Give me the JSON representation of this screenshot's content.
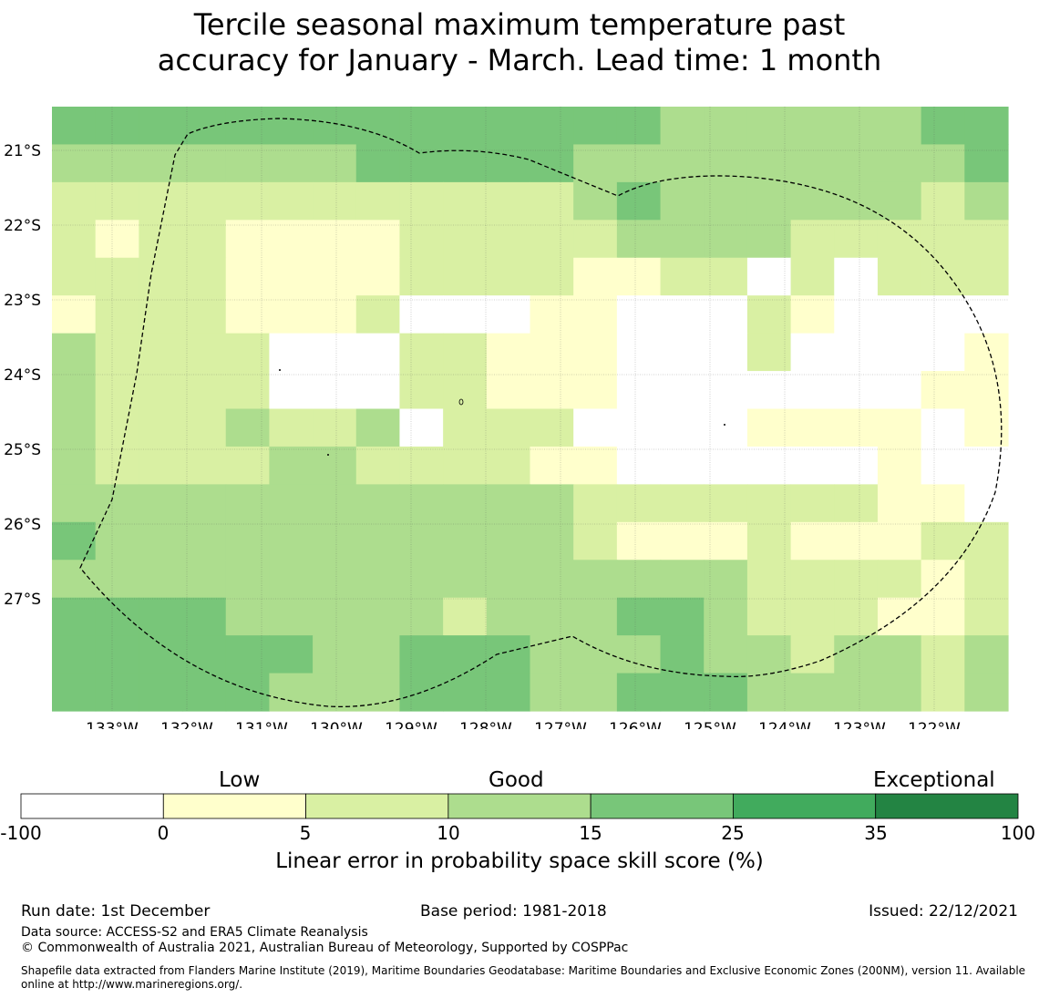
{
  "title_line1": "Tercile seasonal maximum temperature past",
  "title_line2": "accuracy for January - March. Lead time: 1 month",
  "map": {
    "lon_labels": [
      "133°W",
      "132°W",
      "131°W",
      "130°W",
      "129°W",
      "128°W",
      "127°W",
      "126°W",
      "125°W",
      "124°W",
      "123°W",
      "122°W"
    ],
    "lat_labels": [
      "21°S",
      "22°S",
      "23°S",
      "24°S",
      "25°S",
      "26°S",
      "27°S"
    ],
    "grid_rows": [
      "3333333333333322222233",
      "2222222333332222222223",
      "1111111111112322222212",
      "1011000011111222211111",
      "1111000011110011-1-111",
      "01110001---00---10----",
      "21111---11000---1----0",
      "21111---11000-------00",
      "21112112-111----0000-0",
      "2111122111100------0--",
      "222222222222111111100-",
      "3222222222221000100011",
      "2222222222222222111101",
      "3333222221222332111001",
      "3333332233322232212212",
      "3333322233322333222212"
    ]
  },
  "colorbar": {
    "categories": [
      "Low",
      "Good",
      "Exceptional"
    ],
    "ticks": [
      "-100",
      "0",
      "5",
      "10",
      "15",
      "25",
      "35",
      "100"
    ],
    "colors": [
      "#ffffff",
      "#ffffcc",
      "#d9f0a3",
      "#addd8e",
      "#78c679",
      "#41ab5d",
      "#238443"
    ],
    "label": "Linear error in probability space skill score (%)"
  },
  "footer": {
    "run_date": "Run date: 1st December",
    "base_period": "Base period: 1981-2018",
    "issued": "Issued: 22/12/2021",
    "data_source": "Data source: ACCESS-S2 and ERA5 Climate Reanalysis",
    "copyright": "© Commonwealth of Australia 2021, Australian Bureau of Meteorology, Supported by COSPPac",
    "shapefile_line1": "Shapefile data extracted from Flanders Marine Institute (2019), Maritime Boundaries Geodatabase: Maritime Boundaries and Exclusive Economic Zones (200NM), version 11. Available",
    "shapefile_line2": "online at http://www.marineregions.org/."
  }
}
